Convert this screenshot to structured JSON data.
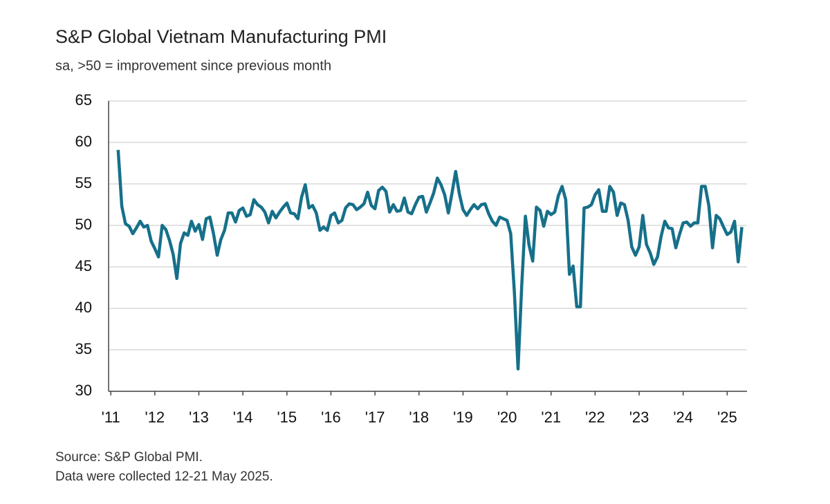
{
  "chart_data": {
    "type": "line",
    "title": "S&P Global Vietnam Manufacturing PMI",
    "subtitle": "sa, >50 = improvement since previous month",
    "source": "Source: S&P Global PMI.",
    "note": "Data were collected 12-21 May 2025.",
    "grid": true,
    "xlim": [
      2010.95,
      2025.45
    ],
    "ylim": [
      30,
      65
    ],
    "yticks": [
      30,
      35,
      40,
      45,
      50,
      55,
      60,
      65
    ],
    "xticks": [
      {
        "value": 2011,
        "label": "'11"
      },
      {
        "value": 2012,
        "label": "'12"
      },
      {
        "value": 2013,
        "label": "'13"
      },
      {
        "value": 2014,
        "label": "'14"
      },
      {
        "value": 2015,
        "label": "'15"
      },
      {
        "value": 2016,
        "label": "'16"
      },
      {
        "value": 2017,
        "label": "'17"
      },
      {
        "value": 2018,
        "label": "'18"
      },
      {
        "value": 2019,
        "label": "'19"
      },
      {
        "value": 2020,
        "label": "'20"
      },
      {
        "value": 2021,
        "label": "'21"
      },
      {
        "value": 2022,
        "label": "'22"
      },
      {
        "value": 2023,
        "label": "'23"
      },
      {
        "value": 2024,
        "label": "'24"
      },
      {
        "value": 2025,
        "label": "'25"
      }
    ],
    "x": [
      2011.167,
      2011.25,
      2011.333,
      2011.417,
      2011.5,
      2011.583,
      2011.667,
      2011.75,
      2011.833,
      2011.917,
      2012,
      2012.083,
      2012.167,
      2012.25,
      2012.333,
      2012.417,
      2012.5,
      2012.583,
      2012.667,
      2012.75,
      2012.833,
      2012.917,
      2013,
      2013.083,
      2013.167,
      2013.25,
      2013.333,
      2013.417,
      2013.5,
      2013.583,
      2013.667,
      2013.75,
      2013.833,
      2013.917,
      2014,
      2014.083,
      2014.167,
      2014.25,
      2014.333,
      2014.417,
      2014.5,
      2014.583,
      2014.667,
      2014.75,
      2014.833,
      2014.917,
      2015,
      2015.083,
      2015.167,
      2015.25,
      2015.333,
      2015.417,
      2015.5,
      2015.583,
      2015.667,
      2015.75,
      2015.833,
      2015.917,
      2016,
      2016.083,
      2016.167,
      2016.25,
      2016.333,
      2016.417,
      2016.5,
      2016.583,
      2016.667,
      2016.75,
      2016.833,
      2016.917,
      2017,
      2017.083,
      2017.167,
      2017.25,
      2017.333,
      2017.417,
      2017.5,
      2017.583,
      2017.667,
      2017.75,
      2017.833,
      2017.917,
      2018,
      2018.083,
      2018.167,
      2018.25,
      2018.333,
      2018.417,
      2018.5,
      2018.583,
      2018.667,
      2018.75,
      2018.833,
      2018.917,
      2019,
      2019.083,
      2019.167,
      2019.25,
      2019.333,
      2019.417,
      2019.5,
      2019.583,
      2019.667,
      2019.75,
      2019.833,
      2019.917,
      2020,
      2020.083,
      2020.167,
      2020.25,
      2020.333,
      2020.417,
      2020.5,
      2020.583,
      2020.667,
      2020.75,
      2020.833,
      2020.917,
      2021,
      2021.083,
      2021.167,
      2021.25,
      2021.333,
      2021.417,
      2021.5,
      2021.583,
      2021.667,
      2021.75,
      2021.833,
      2021.917,
      2022,
      2022.083,
      2022.167,
      2022.25,
      2022.333,
      2022.417,
      2022.5,
      2022.583,
      2022.667,
      2022.75,
      2022.833,
      2022.917,
      2023,
      2023.083,
      2023.167,
      2023.25,
      2023.333,
      2023.417,
      2023.5,
      2023.583,
      2023.667,
      2023.75,
      2023.833,
      2023.917,
      2024,
      2024.083,
      2024.167,
      2024.25,
      2024.333,
      2024.417,
      2024.5,
      2024.583,
      2024.667,
      2024.75,
      2024.833,
      2024.917,
      2025,
      2025.083,
      2025.167,
      2025.25,
      2025.333
    ],
    "series": [
      {
        "color": "#16708a",
        "values": [
          59.1,
          52.3,
          50.2,
          49.9,
          49.0,
          49.7,
          50.5,
          49.8,
          50.0,
          48.1,
          47.2,
          46.2,
          50.0,
          49.5,
          48.2,
          46.5,
          43.6,
          47.8,
          49.1,
          48.8,
          50.5,
          49.3,
          50.1,
          48.3,
          50.8,
          51.0,
          49.0,
          46.4,
          48.3,
          49.4,
          51.5,
          51.5,
          50.4,
          51.8,
          52.1,
          51.1,
          51.3,
          53.1,
          52.5,
          52.2,
          51.6,
          50.3,
          51.7,
          50.9,
          51.6,
          52.2,
          52.7,
          51.5,
          51.4,
          50.8,
          53.4,
          54.9,
          52.1,
          52.4,
          51.5,
          49.4,
          49.8,
          49.4,
          51.2,
          51.5,
          50.3,
          50.6,
          52.1,
          52.6,
          52.5,
          51.9,
          52.2,
          52.6,
          54.0,
          52.4,
          52.0,
          54.2,
          54.6,
          54.1,
          51.6,
          52.5,
          51.7,
          51.8,
          53.3,
          51.6,
          51.4,
          52.5,
          53.4,
          53.5,
          51.6,
          52.7,
          53.9,
          55.7,
          54.9,
          53.7,
          51.5,
          53.9,
          56.5,
          53.8,
          51.9,
          51.2,
          51.9,
          52.5,
          52.0,
          52.5,
          52.6,
          51.4,
          50.5,
          50.0,
          51.0,
          50.8,
          50.6,
          49.0,
          41.9,
          32.7,
          42.7,
          51.1,
          47.6,
          45.7,
          52.2,
          51.8,
          49.9,
          51.7,
          51.3,
          51.6,
          53.6,
          54.7,
          53.1,
          44.1,
          45.1,
          40.2,
          40.2,
          52.1,
          52.2,
          52.5,
          53.7,
          54.3,
          51.7,
          51.7,
          54.7,
          54.0,
          51.2,
          52.7,
          52.5,
          50.6,
          47.4,
          46.4,
          47.4,
          51.2,
          47.7,
          46.7,
          45.3,
          46.2,
          48.7,
          50.5,
          49.7,
          49.6,
          47.3,
          48.9,
          50.3,
          50.4,
          49.9,
          50.3,
          50.3,
          54.7,
          54.7,
          52.4,
          47.3,
          51.2,
          50.8,
          49.8,
          48.9,
          49.2,
          50.5,
          45.6,
          49.8
        ]
      }
    ]
  }
}
